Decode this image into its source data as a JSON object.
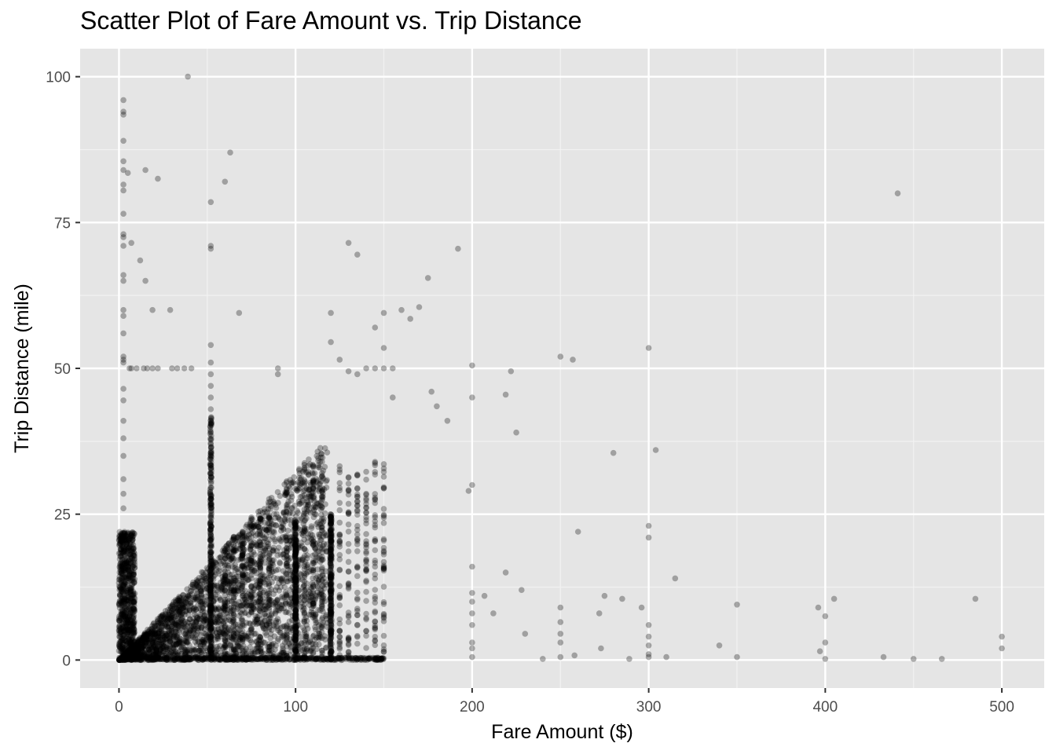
{
  "chart_data": {
    "type": "scatter",
    "title": "Scatter Plot of Fare Amount vs. Trip Distance",
    "xlabel": "Fare Amount ($)",
    "ylabel": "Trip Distance (mile)",
    "xlim": [
      -22,
      524
    ],
    "ylim": [
      -4.8,
      104.8
    ],
    "x_ticks": [
      0,
      100,
      200,
      300,
      400,
      500
    ],
    "y_ticks": [
      0,
      25,
      50,
      75,
      100
    ],
    "grid": true,
    "legend": "none",
    "colors": {
      "panel": "#e5e5e5",
      "grid_major": "#ffffff",
      "grid_minor": "#f2f2f2",
      "point": "#000000",
      "tick_text": "#4d4d4d",
      "tick_mark": "#333333"
    },
    "point_alpha": 0.3,
    "points": [
      [
        39,
        100.0
      ],
      [
        2.5,
        96.0
      ],
      [
        2.5,
        94.0
      ],
      [
        2.5,
        93.5
      ],
      [
        2.5,
        89.0
      ],
      [
        2.5,
        85.5
      ],
      [
        2.5,
        84.0
      ],
      [
        2.5,
        81.5
      ],
      [
        2.5,
        80.5
      ],
      [
        2.5,
        76.5
      ],
      [
        2.5,
        73.0
      ],
      [
        2.5,
        72.5
      ],
      [
        2.5,
        71.0
      ],
      [
        2.5,
        66.0
      ],
      [
        2.5,
        65.0
      ],
      [
        2.5,
        60.0
      ],
      [
        2.5,
        59.0
      ],
      [
        2.5,
        56.0
      ],
      [
        2.5,
        52.0
      ],
      [
        2.5,
        51.5
      ],
      [
        2.5,
        51.0
      ],
      [
        2.5,
        46.5
      ],
      [
        2.5,
        44.5
      ],
      [
        2.5,
        41.0
      ],
      [
        2.5,
        38.0
      ],
      [
        2.5,
        35.0
      ],
      [
        2.5,
        31.0
      ],
      [
        2.5,
        28.5
      ],
      [
        2.5,
        26.0
      ],
      [
        5,
        83.5
      ],
      [
        7,
        71.5
      ],
      [
        12,
        68.5
      ],
      [
        15,
        84.0
      ],
      [
        15,
        65.0
      ],
      [
        22,
        82.5
      ],
      [
        19,
        60.0
      ],
      [
        29,
        60.0
      ],
      [
        6,
        50.0
      ],
      [
        7,
        50.0
      ],
      [
        10,
        50.0
      ],
      [
        14,
        50.0
      ],
      [
        16,
        50.0
      ],
      [
        19,
        50.0
      ],
      [
        22,
        50.0
      ],
      [
        30,
        50.0
      ],
      [
        33,
        50.0
      ],
      [
        37,
        50.0
      ],
      [
        41,
        50.0
      ],
      [
        52,
        78.5
      ],
      [
        52,
        71.0
      ],
      [
        52,
        70.5
      ],
      [
        60,
        82.0
      ],
      [
        63,
        87.0
      ],
      [
        68,
        59.5
      ],
      [
        52,
        54.0
      ],
      [
        52,
        51.0
      ],
      [
        52,
        49.0
      ],
      [
        52,
        47.0
      ],
      [
        52,
        45.0
      ],
      [
        52,
        43.0
      ],
      [
        52,
        41.0
      ],
      [
        52,
        39.0
      ],
      [
        52,
        37.0
      ],
      [
        90,
        50.0
      ],
      [
        90,
        49.0
      ],
      [
        130,
        71.5
      ],
      [
        135,
        69.5
      ],
      [
        120,
        59.5
      ],
      [
        120,
        54.5
      ],
      [
        125,
        51.5
      ],
      [
        130,
        49.5
      ],
      [
        135,
        49.0
      ],
      [
        140,
        50.0
      ],
      [
        145,
        50.0
      ],
      [
        150,
        50.0
      ],
      [
        155,
        50.0
      ],
      [
        145,
        57.0
      ],
      [
        150,
        59.5
      ],
      [
        150,
        53.5
      ],
      [
        155,
        45.0
      ],
      [
        160,
        60.0
      ],
      [
        165,
        58.5
      ],
      [
        170,
        60.5
      ],
      [
        175,
        65.5
      ],
      [
        177,
        46.0
      ],
      [
        180,
        43.5
      ],
      [
        186,
        41.0
      ],
      [
        192,
        70.5
      ],
      [
        200,
        50.5
      ],
      [
        200,
        45.0
      ],
      [
        219,
        45.5
      ],
      [
        222,
        49.5
      ],
      [
        225,
        39.0
      ],
      [
        250,
        52.0
      ],
      [
        257,
        51.5
      ],
      [
        300,
        53.5
      ],
      [
        280,
        35.5
      ],
      [
        304,
        36.0
      ],
      [
        198,
        29.0
      ],
      [
        200,
        30.0
      ],
      [
        300,
        23.0
      ],
      [
        300,
        21.0
      ],
      [
        260,
        22.0
      ],
      [
        200,
        16.0
      ],
      [
        200,
        11.5
      ],
      [
        200,
        10.0
      ],
      [
        200,
        8.0
      ],
      [
        200,
        6.0
      ],
      [
        200,
        3.0
      ],
      [
        200,
        2.0
      ],
      [
        200,
        0.5
      ],
      [
        207,
        11.0
      ],
      [
        212,
        8.0
      ],
      [
        219,
        15.0
      ],
      [
        228,
        12.0
      ],
      [
        230,
        4.5
      ],
      [
        240,
        0.2
      ],
      [
        250,
        9.0
      ],
      [
        250,
        6.5
      ],
      [
        250,
        4.5
      ],
      [
        250,
        3.0
      ],
      [
        250,
        0.5
      ],
      [
        258,
        0.8
      ],
      [
        272,
        8.0
      ],
      [
        273,
        2.0
      ],
      [
        275,
        11.0
      ],
      [
        285,
        10.5
      ],
      [
        289,
        0.2
      ],
      [
        296,
        9.0
      ],
      [
        300,
        6.0
      ],
      [
        300,
        4.0
      ],
      [
        300,
        2.5
      ],
      [
        300,
        1.0
      ],
      [
        300,
        0.5
      ],
      [
        310,
        0.5
      ],
      [
        315,
        14.0
      ],
      [
        340,
        2.5
      ],
      [
        350,
        9.5
      ],
      [
        350,
        0.5
      ],
      [
        396,
        9.0
      ],
      [
        397,
        1.5
      ],
      [
        400,
        7.5
      ],
      [
        400,
        3.0
      ],
      [
        400,
        0.2
      ],
      [
        405,
        10.5
      ],
      [
        433,
        0.5
      ],
      [
        441,
        80.0
      ],
      [
        450,
        0.2
      ],
      [
        466,
        0.2
      ],
      [
        485,
        10.5
      ],
      [
        500,
        4.0
      ],
      [
        500,
        2.0
      ]
    ],
    "dense_clusters": [
      {
        "shape": "wedge",
        "x_from": 0,
        "x_to": 118,
        "y_low": 0,
        "y_high_at_end": 38
      },
      {
        "shape": "band",
        "x_from": 0,
        "x_to": 9,
        "y_low": 0,
        "y_high": 22
      },
      {
        "shape": "column",
        "x": 52,
        "y_low": 0,
        "y_high": 42
      },
      {
        "shape": "column",
        "x": 100,
        "y_low": 0,
        "y_high": 24
      },
      {
        "shape": "column",
        "x": 120,
        "y_low": 0,
        "y_high": 25
      },
      {
        "shape": "floor",
        "x_from": 0,
        "x_to": 150,
        "y_low": 0,
        "y_high": 0.4
      }
    ]
  }
}
